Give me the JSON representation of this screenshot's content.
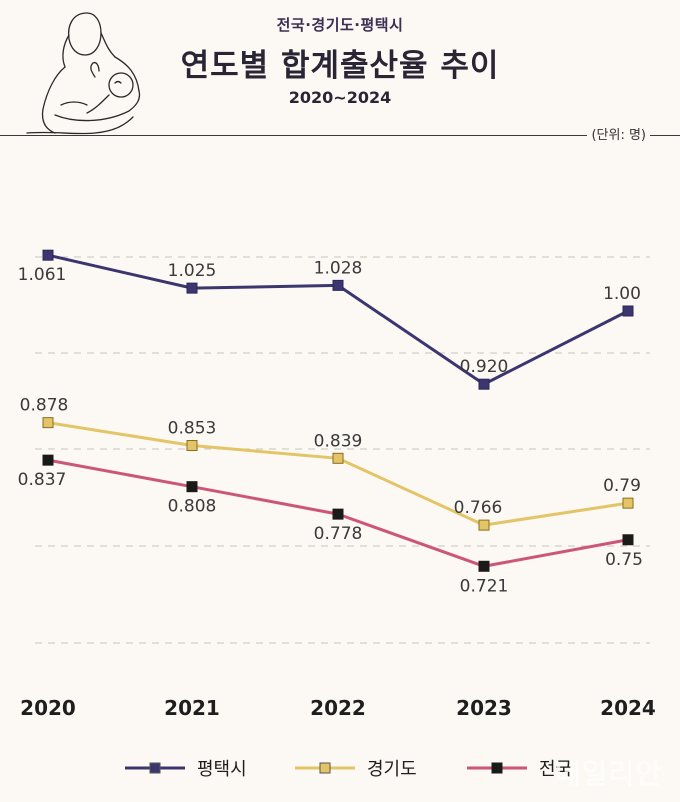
{
  "header": {
    "supertitle": "전국·경기도·평택시",
    "title": "연도별 합계출산율 추이",
    "subtitle": "2020~2024",
    "unit": "(단위: 명)"
  },
  "watermark": "데일리안",
  "chart_data": {
    "type": "line",
    "categories": [
      "2020",
      "2021",
      "2022",
      "2023",
      "2024"
    ],
    "series": [
      {
        "name": "평택시",
        "color": "#3b3670",
        "values": [
          1.061,
          1.025,
          1.028,
          0.92,
          1.0
        ],
        "labels": [
          "1.061",
          "1.025",
          "1.028",
          "0.920",
          "1.00"
        ]
      },
      {
        "name": "경기도",
        "color": "#e3c567",
        "values": [
          0.878,
          0.853,
          0.839,
          0.766,
          0.79
        ],
        "labels": [
          "0.878",
          "0.853",
          "0.839",
          "0.766",
          "0.79"
        ]
      },
      {
        "name": "전국",
        "color": "#cc5579",
        "values": [
          0.837,
          0.808,
          0.778,
          0.721,
          0.75
        ],
        "labels": [
          "0.837",
          "0.808",
          "0.778",
          "0.721",
          "0.75"
        ]
      }
    ],
    "legend_position": "bottom",
    "grid": true
  }
}
